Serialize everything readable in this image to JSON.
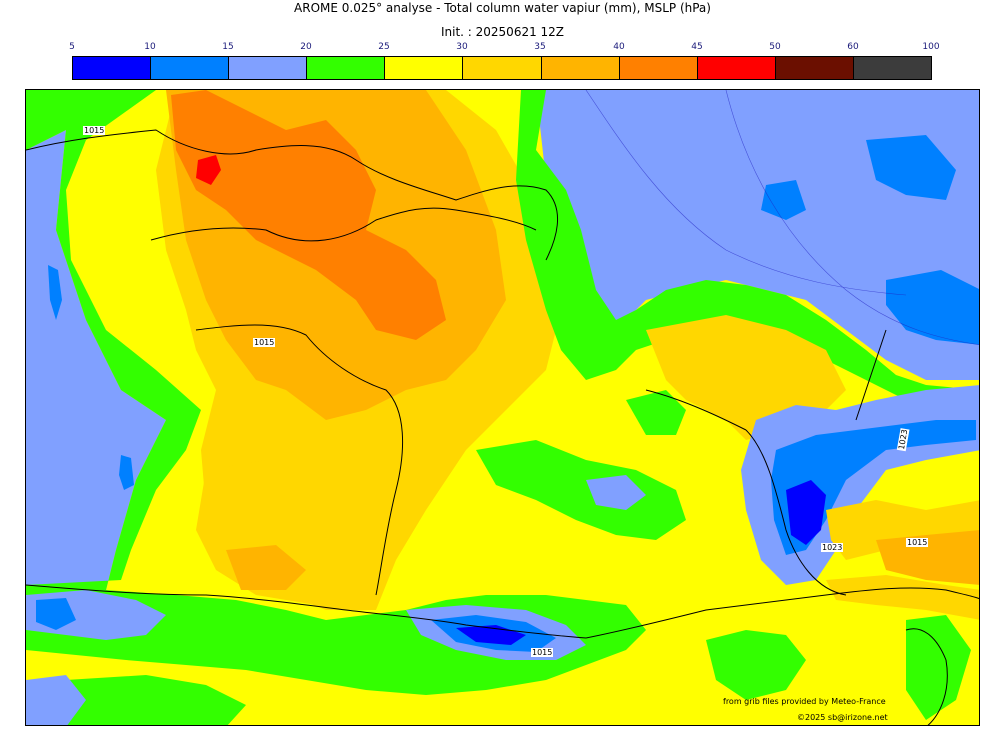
{
  "title": "AROME 0.025° analyse - Total column water vapiur (mm), MSLP (hPa)",
  "init": "Init. : 20250621 12Z",
  "colorbar": {
    "ticks": [
      "5",
      "10",
      "15",
      "20",
      "25",
      "30",
      "35",
      "40",
      "45",
      "50",
      "60",
      "100"
    ],
    "colors": [
      "#0000ff",
      "#0080ff",
      "#80a0ff",
      "#33ff00",
      "#ffff00",
      "#ffd700",
      "#ffb400",
      "#ff8000",
      "#ff0000",
      "#6b0f00",
      "#3c3c3c"
    ]
  },
  "map": {
    "isobar_labels": [
      "1015",
      "1015",
      "1023",
      "1015",
      "1023",
      "1015"
    ],
    "credit_source": "from grib files provided by Meteo-France",
    "credit_copyright": "©2025 sb@irizone.net"
  }
}
